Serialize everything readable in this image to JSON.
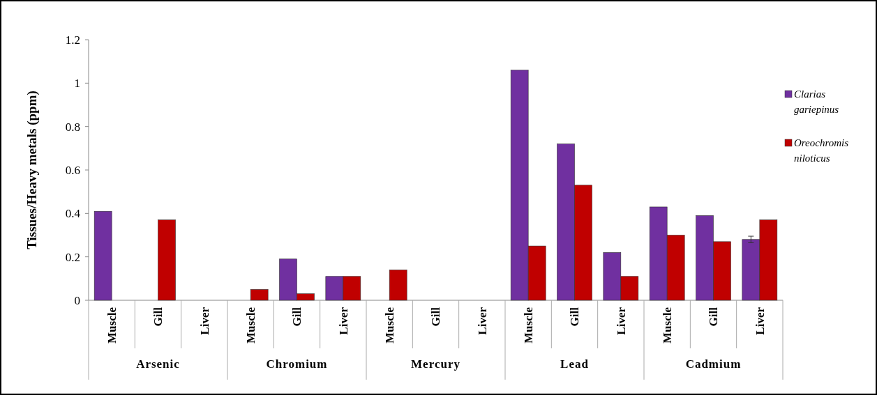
{
  "chart_data": {
    "type": "bar",
    "ylabel": "Tissues/Heavy metals (ppm)",
    "categories": [
      "Muscle",
      "Gill",
      "Liver",
      "Muscle",
      "Gill",
      "Liver",
      "Muscle",
      "Gill",
      "Liver",
      "Muscle",
      "Gill",
      "Liver",
      "Muscle",
      "Gill",
      "Liver"
    ],
    "annotations": [
      "Arsenic",
      "Chromium",
      "Mercury",
      "Lead",
      "Cadmium"
    ],
    "series": [
      {
        "name": "Clarias gariepinus",
        "color": "#7030a0",
        "values": [
          0.41,
          0,
          0,
          0,
          0.19,
          0.11,
          0,
          0,
          0,
          1.06,
          0.72,
          0.22,
          0.43,
          0.39,
          0.28
        ],
        "errors": [
          null,
          null,
          null,
          null,
          null,
          null,
          null,
          null,
          null,
          null,
          null,
          null,
          null,
          null,
          0.015
        ]
      },
      {
        "name": "Oreochromis niloticus",
        "color": "#c00000",
        "values": [
          0,
          0.37,
          0,
          0.05,
          0.03,
          0.11,
          0.14,
          0,
          0,
          0.25,
          0.53,
          0.11,
          0.3,
          0.27,
          0.37
        ]
      }
    ],
    "ylim": [
      0,
      1.2
    ],
    "yticks": [
      0,
      0.2,
      0.4,
      0.6,
      0.8,
      1,
      1.2
    ],
    "legend": "right"
  }
}
